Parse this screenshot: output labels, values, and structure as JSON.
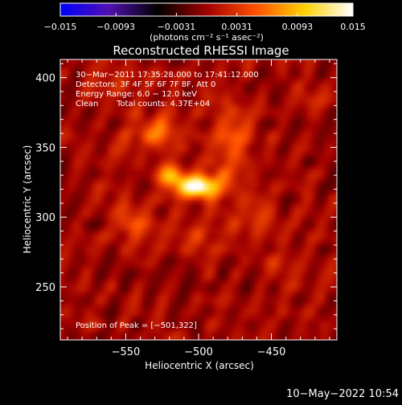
{
  "chart_data": {
    "type": "heatmap",
    "title": "Reconstructed RHESSI Image",
    "xlabel": "Heliocentric X (arcsec)",
    "ylabel": "Heliocentric Y (arcsec)",
    "xlim": [
      -595,
      -405
    ],
    "ylim": [
      212,
      413
    ],
    "x_ticks": [
      -550,
      -500,
      -450
    ],
    "x_tick_labels": [
      "−550",
      "−500",
      "−450"
    ],
    "y_ticks": [
      250,
      300,
      350,
      400
    ],
    "y_tick_labels": [
      "250",
      "300",
      "350",
      "400"
    ],
    "colorbar": {
      "min": -0.015,
      "max": 0.015,
      "ticks": [
        -0.015,
        -0.0093,
        -0.0031,
        0.0031,
        0.0093,
        0.015
      ],
      "tick_labels": [
        "−0.015",
        "−0.0093",
        "−0.0031",
        "0.0031",
        "0.0093",
        "0.015"
      ],
      "unit_label": "(photons cm⁻² s⁻¹ asec⁻²)",
      "colormap": [
        "#0000ff",
        "#5010b0",
        "#000000",
        "#a00000",
        "#ff5000",
        "#ffd000",
        "#ffffff"
      ]
    },
    "peak": {
      "x": -501,
      "y": 322,
      "value": 0.015
    },
    "sources": [
      {
        "x": -501,
        "y": 322,
        "sx": 11,
        "sy": 6,
        "amp": 1.0
      },
      {
        "x": -520,
        "y": 330,
        "sx": 7,
        "sy": 6,
        "amp": 0.55
      },
      {
        "x": -530,
        "y": 362,
        "sx": 14,
        "sy": 8,
        "amp": 0.35
      },
      {
        "x": -478,
        "y": 350,
        "sx": 10,
        "sy": 22,
        "amp": 0.3
      },
      {
        "x": -545,
        "y": 300,
        "sx": 10,
        "sy": 12,
        "amp": 0.22
      },
      {
        "x": -500,
        "y": 290,
        "sx": 18,
        "sy": 8,
        "amp": 0.2
      },
      {
        "x": -460,
        "y": 300,
        "sx": 9,
        "sy": 10,
        "amp": 0.18
      },
      {
        "x": -440,
        "y": 265,
        "sx": 10,
        "sy": 10,
        "amp": 0.15
      },
      {
        "x": -560,
        "y": 390,
        "sx": 10,
        "sy": 10,
        "amp": 0.12
      },
      {
        "x": -420,
        "y": 380,
        "sx": 8,
        "sy": 8,
        "amp": 0.1
      }
    ],
    "annotations": {
      "line1": "30−Mar−2011 17:35:28.000 to 17:41:12.000",
      "line2": "Detectors: 3F 4F 5F 6F 7F 8F, Att 0",
      "line3": "Energy Range: 6.0 − 12.0 keV",
      "line4_method": "Clean",
      "line4_counts": "Total counts: 4.37E+04",
      "peak_label": "Position of Peak = [−501,322]"
    }
  },
  "footer": {
    "date": "10−May−2022 10:54"
  }
}
